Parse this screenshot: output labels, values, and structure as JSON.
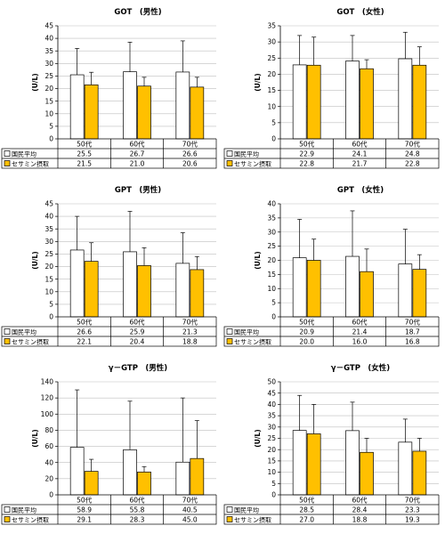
{
  "chart_data": [
    {
      "type": "bar",
      "title": "GOT　(男性)",
      "ylabel": "(U/L)",
      "ylim": [
        0,
        45
      ],
      "ytick_step": 5,
      "categories": [
        "50代",
        "60代",
        "70代"
      ],
      "series": [
        {
          "name": "国民平均",
          "values": [
            25.5,
            26.7,
            26.6
          ],
          "labels": [
            "25.5",
            "26.7",
            "26.6"
          ],
          "err": [
            36,
            38.5,
            39
          ],
          "color": "#ffffff"
        },
        {
          "name": "セサミン摂取",
          "values": [
            21.5,
            21.0,
            20.6
          ],
          "labels": [
            "21.5",
            "21.0",
            "20.6"
          ],
          "err": [
            26.5,
            24.5,
            24.5
          ],
          "color": "#ffc000"
        }
      ]
    },
    {
      "type": "bar",
      "title": "GOT　(女性)",
      "ylabel": "(U/L)",
      "ylim": [
        0,
        35
      ],
      "ytick_step": 5,
      "categories": [
        "50代",
        "60代",
        "70代"
      ],
      "series": [
        {
          "name": "国民平均",
          "values": [
            22.9,
            24.1,
            24.8
          ],
          "labels": [
            "22.9",
            "24.1",
            "24.8"
          ],
          "err": [
            32,
            32,
            33
          ],
          "color": "#ffffff"
        },
        {
          "name": "セサミン摂取",
          "values": [
            22.8,
            21.7,
            22.8
          ],
          "labels": [
            "22.8",
            "21.7",
            "22.8"
          ],
          "err": [
            31.5,
            24.5,
            28.5
          ],
          "color": "#ffc000"
        }
      ]
    },
    {
      "type": "bar",
      "title": "GPT　(男性)",
      "ylabel": "(U/L)",
      "ylim": [
        0,
        45
      ],
      "ytick_step": 5,
      "categories": [
        "50代",
        "60代",
        "70代"
      ],
      "series": [
        {
          "name": "国民平均",
          "values": [
            26.6,
            25.9,
            21.3
          ],
          "labels": [
            "26.6",
            "25.9",
            "21.3"
          ],
          "err": [
            40,
            42,
            33.5
          ],
          "color": "#ffffff"
        },
        {
          "name": "セサミン摂取",
          "values": [
            22.1,
            20.4,
            18.8
          ],
          "labels": [
            "22.1",
            "20.4",
            "18.8"
          ],
          "err": [
            29.5,
            27.5,
            24
          ],
          "color": "#ffc000"
        }
      ]
    },
    {
      "type": "bar",
      "title": "GPT　(女性)",
      "ylabel": "(U/L)",
      "ylim": [
        0,
        40
      ],
      "ytick_step": 5,
      "categories": [
        "50代",
        "60代",
        "70代"
      ],
      "series": [
        {
          "name": "国民平均",
          "values": [
            20.9,
            21.4,
            18.7
          ],
          "labels": [
            "20.9",
            "21.4",
            "18.7"
          ],
          "err": [
            34.5,
            37.5,
            31
          ],
          "color": "#ffffff"
        },
        {
          "name": "セサミン摂取",
          "values": [
            20.0,
            16.0,
            16.8
          ],
          "labels": [
            "20.0",
            "16.0",
            "16.8"
          ],
          "err": [
            27.5,
            24,
            22
          ],
          "color": "#ffc000"
        }
      ]
    },
    {
      "type": "bar",
      "title": "γ－GTP　(男性)",
      "ylabel": "(U/L)",
      "ylim": [
        0,
        140
      ],
      "ytick_step": 20,
      "categories": [
        "50代",
        "60代",
        "70代"
      ],
      "series": [
        {
          "name": "国民平均",
          "values": [
            58.9,
            55.8,
            40.5
          ],
          "labels": [
            "58.9",
            "55.8",
            "40.5"
          ],
          "err": [
            130,
            116,
            120
          ],
          "color": "#ffffff"
        },
        {
          "name": "セサミン摂取",
          "values": [
            29.1,
            28.3,
            45.0
          ],
          "labels": [
            "29.1",
            "28.3",
            "45.0"
          ],
          "err": [
            44,
            35,
            92
          ],
          "color": "#ffc000"
        }
      ]
    },
    {
      "type": "bar",
      "title": "γ－GTP　(女性)",
      "ylabel": "(U/L)",
      "ylim": [
        0,
        50
      ],
      "ytick_step": 5,
      "categories": [
        "50代",
        "60代",
        "70代"
      ],
      "series": [
        {
          "name": "国民平均",
          "values": [
            28.5,
            28.4,
            23.3
          ],
          "labels": [
            "28.5",
            "28.4",
            "23.3"
          ],
          "err": [
            44,
            41,
            33.5
          ],
          "color": "#ffffff"
        },
        {
          "name": "セサミン摂取",
          "values": [
            27.0,
            18.8,
            19.3
          ],
          "labels": [
            "27.0",
            "18.8",
            "19.3"
          ],
          "err": [
            40,
            25,
            25
          ],
          "color": "#ffc000"
        }
      ]
    }
  ]
}
